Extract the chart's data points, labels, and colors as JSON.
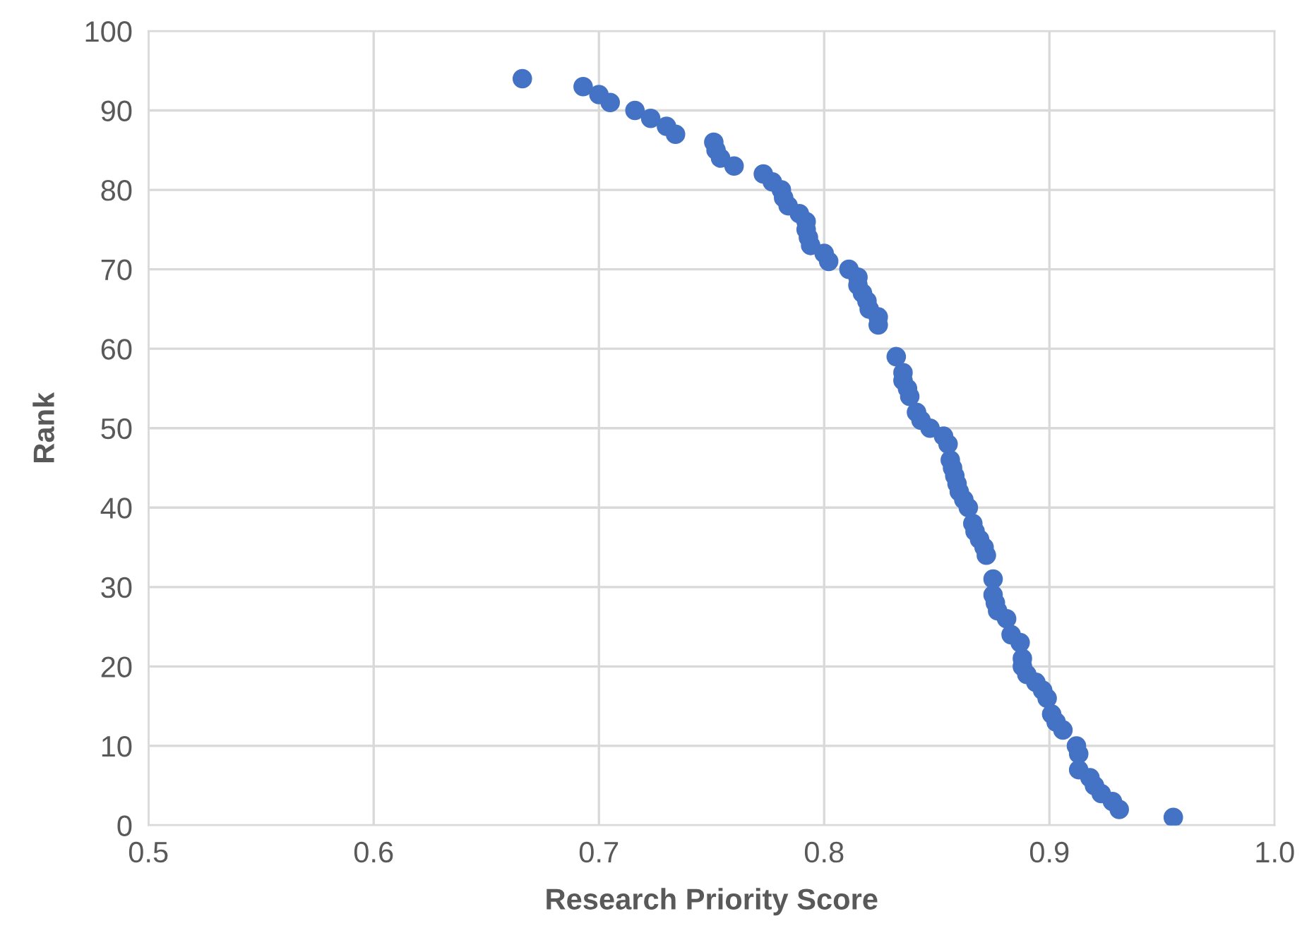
{
  "chart_data": {
    "type": "scatter",
    "xlabel": "Research Priority Score",
    "ylabel": "Rank",
    "x": [
      0.666,
      0.693,
      0.7,
      0.705,
      0.716,
      0.723,
      0.73,
      0.734,
      0.751,
      0.752,
      0.754,
      0.76,
      0.773,
      0.777,
      0.781,
      0.782,
      0.784,
      0.789,
      0.792,
      0.792,
      0.793,
      0.794,
      0.8,
      0.802,
      0.811,
      0.815,
      0.815,
      0.817,
      0.819,
      0.82,
      0.824,
      0.824,
      0.832,
      0.835,
      0.835,
      0.837,
      0.838,
      0.841,
      0.843,
      0.847,
      0.853,
      0.855,
      0.856,
      0.857,
      0.858,
      0.859,
      0.86,
      0.862,
      0.864,
      0.866,
      0.867,
      0.869,
      0.871,
      0.872,
      0.875,
      0.875,
      0.876,
      0.877,
      0.881,
      0.883,
      0.887,
      0.888,
      0.888,
      0.89,
      0.894,
      0.897,
      0.899,
      0.901,
      0.903,
      0.906,
      0.912,
      0.913,
      0.913,
      0.918,
      0.92,
      0.923,
      0.928,
      0.931,
      0.955
    ],
    "series": [
      {
        "color": "#4472c4",
        "values": [
          94,
          93,
          92,
          91,
          90,
          89,
          88,
          87,
          86,
          85,
          84,
          83,
          82,
          81,
          80,
          79,
          78,
          77,
          76,
          75,
          74,
          73,
          72,
          71,
          70,
          69,
          68,
          67,
          66,
          65,
          64,
          63,
          59,
          57,
          56,
          55,
          54,
          52,
          51,
          50,
          49,
          48,
          46,
          45,
          44,
          43,
          42,
          41,
          40,
          38,
          37,
          36,
          35,
          34,
          31,
          29,
          28,
          27,
          26,
          24,
          23,
          21,
          20,
          19,
          18,
          17,
          16,
          14,
          13,
          12,
          10,
          9,
          7,
          6,
          5,
          4,
          3,
          2,
          1
        ]
      }
    ],
    "xlim": [
      0.5,
      1.0
    ],
    "xticks": [
      {
        "value": 0.5,
        "label": "0.5"
      },
      {
        "value": 0.6,
        "label": "0.6"
      },
      {
        "value": 0.7,
        "label": "0.7"
      },
      {
        "value": 0.8,
        "label": "0.8"
      },
      {
        "value": 0.9,
        "label": "0.9"
      },
      {
        "value": 1.0,
        "label": "1.0"
      }
    ],
    "ylim": [
      0,
      100
    ],
    "yticks": [
      0,
      10,
      20,
      30,
      40,
      50,
      60,
      70,
      80,
      90,
      100
    ],
    "grid": true,
    "marker": "circle"
  }
}
